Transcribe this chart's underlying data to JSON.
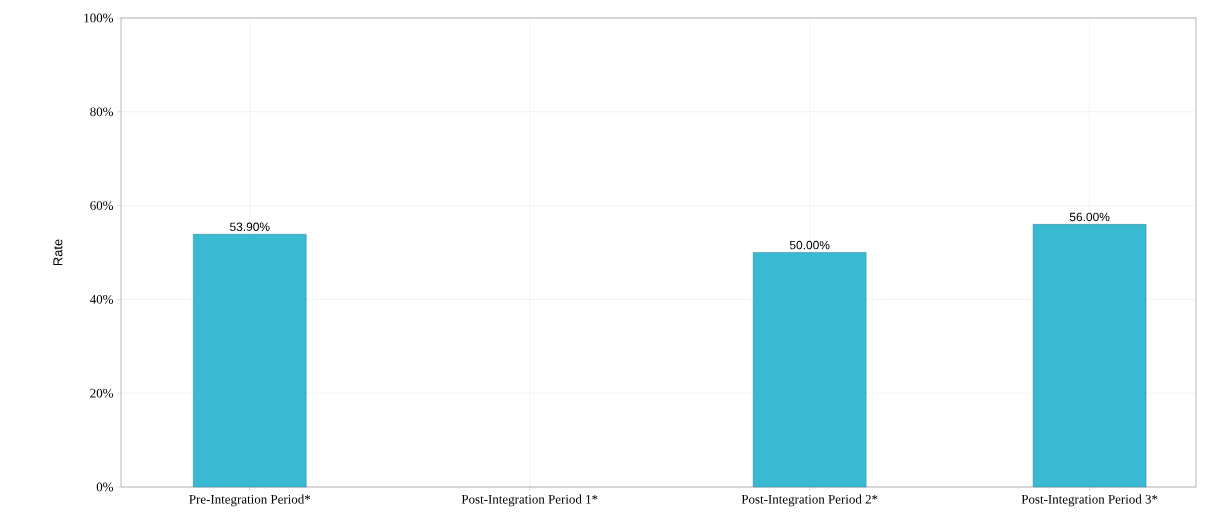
{
  "chart_data": {
    "type": "bar",
    "ylabel": "Rate",
    "categories": [
      "Pre-Integration Period*",
      "Post-Integration Period 1*",
      "Post-Integration Period 2*",
      "Post-Integration Period 3*"
    ],
    "values": [
      53.9,
      null,
      50.0,
      56.0
    ],
    "value_labels": [
      "53.90%",
      null,
      "50.00%",
      "56.00%"
    ],
    "color": "#3ab9d2",
    "ylim": [
      0,
      100
    ],
    "yticks": [
      {
        "value": 0,
        "label": "0%"
      },
      {
        "value": 20,
        "label": "20%"
      },
      {
        "value": 40,
        "label": "40%"
      },
      {
        "value": 60,
        "label": "60%"
      },
      {
        "value": 80,
        "label": "80%"
      },
      {
        "value": 100,
        "label": "100%"
      }
    ],
    "grid": true
  }
}
